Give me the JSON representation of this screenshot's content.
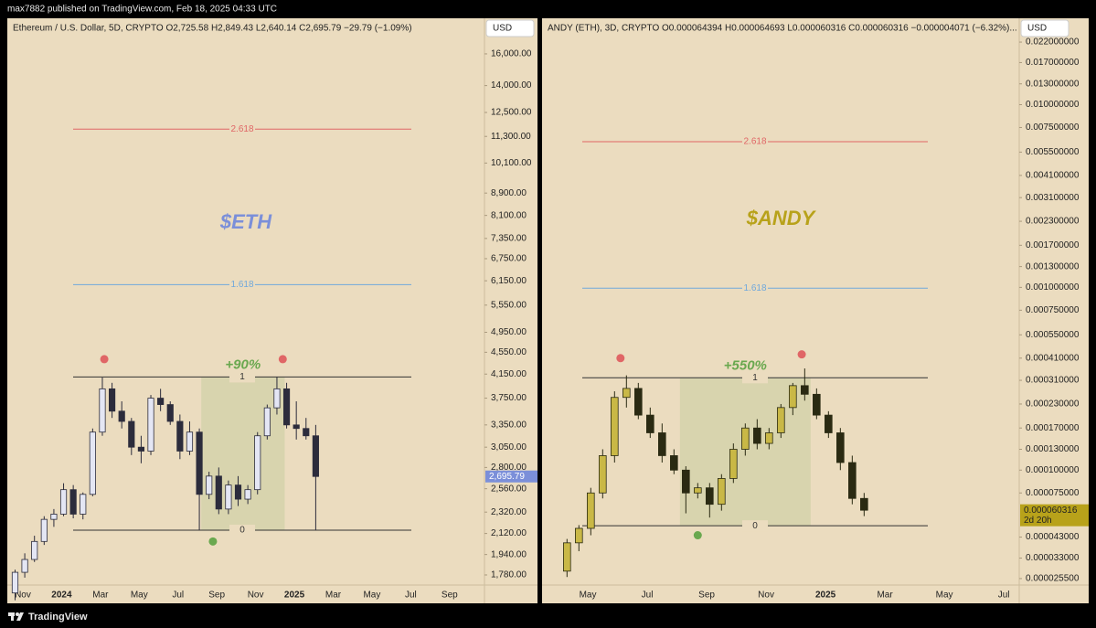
{
  "header": {
    "text": "max7882 published on TradingView.com, Feb 18, 2025 04:33 UTC"
  },
  "footer": {
    "brand": "TradingView"
  },
  "chart_data": [
    {
      "type": "candlestick",
      "title": "$ETH",
      "title_color": "#7b8fd9",
      "legend": "Ethereum / U.S. Dollar, 5D, CRYPTO  O2,725.58  H2,849.43  L2,640.14  C2,695.79  −29.79 (−1.09%)",
      "currency": "USD",
      "log_scale": true,
      "xlim": [
        -0.8,
        23.8
      ],
      "ylim": [
        1706,
        18590
      ],
      "xticks": [
        {
          "value": 0,
          "label": "Nov"
        },
        {
          "value": 2,
          "label": "2024"
        },
        {
          "value": 4,
          "label": "Mar"
        },
        {
          "value": 6,
          "label": "May"
        },
        {
          "value": 8,
          "label": "Jul"
        },
        {
          "value": 10,
          "label": "Sep"
        },
        {
          "value": 12,
          "label": "Nov"
        },
        {
          "value": 14,
          "label": "2025"
        },
        {
          "value": 16,
          "label": "Mar"
        },
        {
          "value": 18,
          "label": "May"
        },
        {
          "value": 20,
          "label": "Jul"
        },
        {
          "value": 22,
          "label": "Sep"
        }
      ],
      "yticks": [
        {
          "value": 16000,
          "label": "16,000.00"
        },
        {
          "value": 14000,
          "label": "14,000.00"
        },
        {
          "value": 12500,
          "label": "12,500.00"
        },
        {
          "value": 11300,
          "label": "11,300.00"
        },
        {
          "value": 10100,
          "label": "10,100.00"
        },
        {
          "value": 8900,
          "label": "8,900.00"
        },
        {
          "value": 8100,
          "label": "8,100.00"
        },
        {
          "value": 7350,
          "label": "7,350.00"
        },
        {
          "value": 6750,
          "label": "6,750.00"
        },
        {
          "value": 6150,
          "label": "6,150.00"
        },
        {
          "value": 5550,
          "label": "5,550.00"
        },
        {
          "value": 4950,
          "label": "4,950.00"
        },
        {
          "value": 4550,
          "label": "4,550.00"
        },
        {
          "value": 4150,
          "label": "4,150.00"
        },
        {
          "value": 3750,
          "label": "3,750.00"
        },
        {
          "value": 3350,
          "label": "3,350.00"
        },
        {
          "value": 3050,
          "label": "3,050.00"
        },
        {
          "value": 2800,
          "label": "2,800.00"
        },
        {
          "value": 2560,
          "label": "2,560.00"
        },
        {
          "value": 2320,
          "label": "2,320.00"
        },
        {
          "value": 2120,
          "label": "2,120.00"
        },
        {
          "value": 1940,
          "label": "1,940.00"
        },
        {
          "value": 1780,
          "label": "1,780.00"
        }
      ],
      "up_color": "#e4e6f4",
      "down_color": "#2c2c3c",
      "wick_color": "#2c2c3c",
      "x": [
        -0.4,
        0.1,
        0.6,
        1.1,
        1.6,
        2.1,
        2.6,
        3.1,
        3.6,
        4.1,
        4.6,
        5.1,
        5.6,
        6.1,
        6.6,
        7.1,
        7.6,
        8.1,
        8.6,
        9.1,
        9.6,
        10.1,
        10.6,
        11.1,
        11.6,
        12.1,
        12.6,
        13.1,
        13.6,
        14.1,
        14.6,
        15.1
      ],
      "open": [
        1650,
        1800,
        1900,
        2050,
        2250,
        2300,
        2550,
        2300,
        2500,
        3250,
        3900,
        3550,
        3400,
        3050,
        3000,
        3750,
        3650,
        3400,
        3000,
        3250,
        2500,
        2700,
        2350,
        2600,
        2450,
        2550,
        3200,
        3600,
        3900,
        3350,
        3300,
        3200
      ],
      "high": [
        1820,
        1950,
        2100,
        2280,
        2350,
        2620,
        2600,
        2520,
        3300,
        4090,
        4000,
        3700,
        3450,
        3200,
        3800,
        3900,
        3700,
        3500,
        3400,
        3300,
        2750,
        2800,
        2650,
        2700,
        2600,
        3250,
        3650,
        4100,
        4000,
        3700,
        3450,
        3350
      ],
      "low": [
        1600,
        1760,
        1880,
        2020,
        2180,
        2280,
        2260,
        2250,
        2480,
        3200,
        3450,
        3300,
        2950,
        2850,
        2950,
        3550,
        3350,
        2900,
        2950,
        2150,
        2450,
        2300,
        2300,
        2380,
        2400,
        2500,
        3150,
        3500,
        3300,
        3150,
        3150,
        2150
      ],
      "close": [
        1800,
        1900,
        2050,
        2250,
        2300,
        2550,
        2300,
        2500,
        3250,
        3900,
        3550,
        3400,
        3050,
        3000,
        3750,
        3650,
        3400,
        3000,
        3250,
        2500,
        2700,
        2350,
        2600,
        2450,
        2550,
        3200,
        3600,
        3900,
        3350,
        3300,
        3200,
        2695.79
      ],
      "last_price": {
        "value": 2695.79,
        "label": "2,695.79"
      },
      "last_color": "#7b8fd9",
      "levels": [
        {
          "level": 2.618,
          "price": 11650,
          "color": "#e06666"
        },
        {
          "level": 1.618,
          "price": 6050,
          "color": "#6fa8dc"
        },
        {
          "level": 1,
          "price": 4100,
          "color": "#333333"
        },
        {
          "level": 0,
          "price": 2150,
          "color": "#333333"
        }
      ],
      "zone": {
        "x": [
          9.2,
          13.5
        ],
        "y": [
          2150,
          4100
        ],
        "annotation": "+90%",
        "color": "#6aa84f"
      },
      "markers": [
        {
          "x": 4.2,
          "y": 4420,
          "color": "#e06666"
        },
        {
          "x": 13.4,
          "y": 4420,
          "color": "#e06666"
        },
        {
          "x": 9.8,
          "y": 2050,
          "color": "#6aa84f"
        }
      ]
    },
    {
      "type": "candlestick",
      "title": "$ANDY",
      "title_color": "#b8a21a",
      "legend": "ANDY (ETH), 3D, CRYPTO  O0.000064394  H0.000064693  L0.000060316  C0.000060316  −0.000004071 (−6.32%)...",
      "currency": "USD",
      "log_scale": true,
      "xlim": [
        -1.54,
        14.52
      ],
      "ylim": [
        2.35e-05,
        0.0297
      ],
      "xticks": [
        {
          "value": 0,
          "label": "May"
        },
        {
          "value": 2,
          "label": "Jul"
        },
        {
          "value": 4,
          "label": "Sep"
        },
        {
          "value": 6,
          "label": "Nov"
        },
        {
          "value": 8,
          "label": "2025"
        },
        {
          "value": 10,
          "label": "Mar"
        },
        {
          "value": 12,
          "label": "May"
        },
        {
          "value": 14,
          "label": "Jul"
        }
      ],
      "yticks": [
        {
          "value": 0.022,
          "label": "0.022000000"
        },
        {
          "value": 0.017,
          "label": "0.017000000"
        },
        {
          "value": 0.013,
          "label": "0.013000000"
        },
        {
          "value": 0.01,
          "label": "0.010000000"
        },
        {
          "value": 0.0075,
          "label": "0.007500000"
        },
        {
          "value": 0.0055,
          "label": "0.005500000"
        },
        {
          "value": 0.0041,
          "label": "0.004100000"
        },
        {
          "value": 0.0031,
          "label": "0.003100000"
        },
        {
          "value": 0.0023,
          "label": "0.002300000"
        },
        {
          "value": 0.0017,
          "label": "0.001700000"
        },
        {
          "value": 0.0013,
          "label": "0.001300000"
        },
        {
          "value": 0.001,
          "label": "0.001000000"
        },
        {
          "value": 0.00075,
          "label": "0.000750000"
        },
        {
          "value": 0.00055,
          "label": "0.000550000"
        },
        {
          "value": 0.00041,
          "label": "0.000410000"
        },
        {
          "value": 0.00031,
          "label": "0.000310000"
        },
        {
          "value": 0.00023,
          "label": "0.000230000"
        },
        {
          "value": 0.00017,
          "label": "0.000170000"
        },
        {
          "value": 0.00013,
          "label": "0.000130000"
        },
        {
          "value": 0.0001,
          "label": "0.000100000"
        },
        {
          "value": 7.5e-05,
          "label": "0.000075000"
        },
        {
          "value": 4.3e-05,
          "label": "0.000043000"
        },
        {
          "value": 3.3e-05,
          "label": "0.000033000"
        },
        {
          "value": 2.55e-05,
          "label": "0.000025500"
        }
      ],
      "up_color": "#c9b846",
      "down_color": "#2a2a12",
      "wick_color": "#2a2a12",
      "x": [
        -0.7,
        -0.3,
        0.1,
        0.5,
        0.9,
        1.3,
        1.7,
        2.1,
        2.5,
        2.9,
        3.3,
        3.7,
        4.1,
        4.5,
        4.9,
        5.3,
        5.7,
        6.1,
        6.5,
        6.9,
        7.3,
        7.7,
        8.1,
        8.5,
        8.9,
        9.3
      ],
      "open": [
        2.8e-05,
        4e-05,
        4.8e-05,
        7.5e-05,
        0.00012,
        0.00025,
        0.00028,
        0.0002,
        0.00016,
        0.00012,
        0.0001,
        7.5e-05,
        8e-05,
        6.5e-05,
        9e-05,
        0.00013,
        0.00017,
        0.00014,
        0.00016,
        0.00022,
        0.00029,
        0.00026,
        0.0002,
        0.00016,
        0.00011,
        7e-05
      ],
      "high": [
        4.2e-05,
        5e-05,
        8e-05,
        0.00013,
        0.00027,
        0.00033,
        0.0003,
        0.00022,
        0.00018,
        0.00013,
        0.000105,
        8.5e-05,
        8.5e-05,
        9.5e-05,
        0.00014,
        0.00018,
        0.00019,
        0.00017,
        0.00023,
        0.0003,
        0.00036,
        0.00028,
        0.00021,
        0.00017,
        0.00012,
        7.5e-05
      ],
      "low": [
        2.6e-05,
        3.6e-05,
        4.4e-05,
        7e-05,
        0.00011,
        0.00022,
        0.00019,
        0.00015,
        0.00011,
        9.5e-05,
        5.8e-05,
        7e-05,
        5.5e-05,
        6e-05,
        8.5e-05,
        0.00012,
        0.00013,
        0.00013,
        0.00015,
        0.0002,
        0.00024,
        0.00019,
        0.00015,
        0.0001,
        6.5e-05,
        5.6e-05
      ],
      "close": [
        4e-05,
        4.8e-05,
        7.5e-05,
        0.00012,
        0.00025,
        0.00028,
        0.0002,
        0.00016,
        0.00012,
        0.0001,
        7.5e-05,
        8e-05,
        6.5e-05,
        9e-05,
        0.00013,
        0.00017,
        0.00014,
        0.00016,
        0.00022,
        0.00029,
        0.00026,
        0.0002,
        0.00016,
        0.00011,
        7e-05,
        6.0316e-05
      ],
      "last_price": {
        "value": 6.0316e-05,
        "label": "0.000060316"
      },
      "countdown": "2d 20h",
      "last_color": "#b8a21a",
      "levels": [
        {
          "level": 2.618,
          "price": 0.00627,
          "color": "#e06666"
        },
        {
          "level": 1.618,
          "price": 0.00099,
          "color": "#6fa8dc"
        },
        {
          "level": 1,
          "price": 0.00032,
          "color": "#333333"
        },
        {
          "level": 0,
          "price": 4.96e-05,
          "color": "#333333"
        }
      ],
      "zone": {
        "x": [
          3.1,
          7.5
        ],
        "y": [
          4.96e-05,
          0.00032
        ],
        "annotation": "+550%",
        "color": "#6aa84f"
      },
      "markers": [
        {
          "x": 1.1,
          "y": 0.00041,
          "color": "#e06666"
        },
        {
          "x": 7.2,
          "y": 0.00043,
          "color": "#e06666"
        },
        {
          "x": 3.7,
          "y": 4.4e-05,
          "color": "#6aa84f"
        }
      ]
    }
  ]
}
